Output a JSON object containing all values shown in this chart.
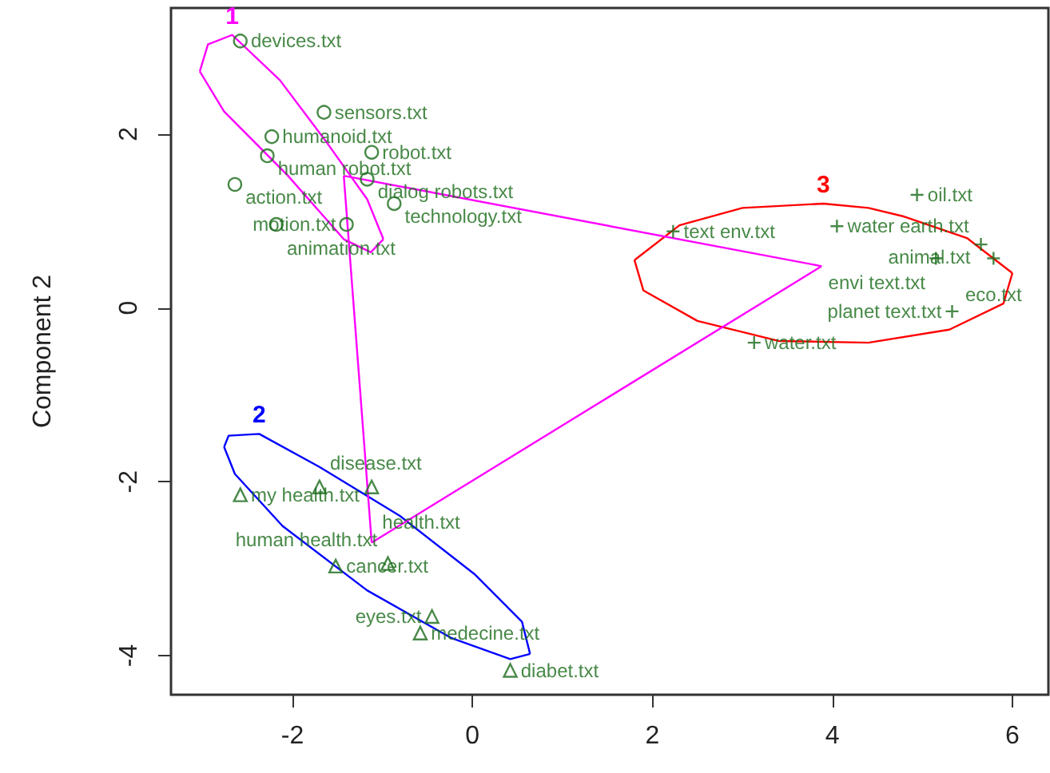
{
  "chart_data": {
    "type": "scatter",
    "ylabel": "Component 2",
    "xlim": [
      -3.35,
      6.4
    ],
    "ylim": [
      -4.45,
      3.45
    ],
    "xticks": [
      -2,
      0,
      2,
      4,
      6
    ],
    "yticks": [
      -4,
      -2,
      0,
      2
    ],
    "grid": false,
    "annotations": [
      "1",
      "2",
      "3"
    ],
    "series": [
      {
        "type": "line",
        "color": "#ff00ff",
        "x": [
          -3.03,
          -2.94,
          -2.67,
          -2.14,
          -1.61,
          -1.17,
          -0.99
        ],
        "values": [
          2.72,
          3.03,
          3.14,
          2.62,
          1.89,
          1.25,
          0.79
        ]
      },
      {
        "type": "line",
        "color": "#ff00ff",
        "x": [
          -3.03,
          -2.76,
          -2.05,
          -1.43,
          -1.13,
          -0.99
        ],
        "values": [
          2.72,
          2.26,
          1.52,
          0.79,
          0.64,
          0.79
        ]
      },
      {
        "type": "line",
        "color": "#0000ff",
        "x": [
          -2.76,
          -2.71,
          -2.37,
          -1.7,
          -0.81,
          0.02,
          0.55,
          0.64
        ],
        "values": [
          -1.6,
          -1.47,
          -1.45,
          -1.83,
          -2.39,
          -3.06,
          -3.61,
          -3.98
        ]
      },
      {
        "type": "line",
        "color": "#0000ff",
        "x": [
          -2.76,
          -2.64,
          -2.11,
          -1.17,
          -0.23,
          0.42,
          0.64
        ],
        "values": [
          -1.6,
          -1.91,
          -2.51,
          -3.25,
          -3.8,
          -4.04,
          -3.98
        ]
      },
      {
        "type": "line",
        "color": "#ff0000",
        "x": [
          1.8,
          2.3,
          3.0,
          3.9,
          4.4,
          4.8,
          5.5,
          6.0
        ],
        "values": [
          0.55,
          0.95,
          1.15,
          1.2,
          1.15,
          1.05,
          0.8,
          0.4
        ]
      },
      {
        "type": "line",
        "color": "#ff0000",
        "x": [
          1.8,
          1.9,
          2.5,
          3.4,
          4.4,
          5.3,
          5.9,
          6.0
        ],
        "values": [
          0.55,
          0.2,
          -0.15,
          -0.38,
          -0.4,
          -0.25,
          0.05,
          0.4
        ]
      },
      {
        "type": "line",
        "color": "#ff00ff",
        "x": [
          -1.43,
          3.88
        ],
        "values": [
          1.52,
          0.48
        ]
      },
      {
        "type": "line",
        "color": "#ff00ff",
        "x": [
          -1.43,
          -1.12
        ],
        "values": [
          1.52,
          -2.7
        ]
      },
      {
        "type": "line",
        "color": "#ff00ff",
        "x": [
          -1.12,
          3.88
        ],
        "values": [
          -2.7,
          0.48
        ]
      },
      {
        "type": "scatter",
        "marker": "circle",
        "color": "#1a6b1a",
        "x": [
          -2.58,
          -1.65,
          -2.23,
          -2.28,
          -1.12,
          -1.17,
          -2.64,
          -0.87,
          -2.18,
          -1.4
        ],
        "values": [
          3.07,
          2.25,
          1.97,
          1.75,
          1.79,
          1.48,
          1.42,
          1.2,
          0.96,
          0.96
        ],
        "value_labels": [
          "devices.txt",
          "sensors.txt",
          "humanoid.txt",
          "human robot.txt",
          "robot.txt",
          "dialog robots.txt",
          "action.txt",
          "technology.txt",
          "animation.txt",
          "motion.txt"
        ]
      },
      {
        "type": "scatter",
        "marker": "triangle",
        "color": "#1a6b1a",
        "x": [
          -2.58,
          -1.7,
          -1.12,
          -1.52,
          -0.94,
          -0.58,
          -0.45,
          0.42
        ],
        "values": [
          -2.15,
          -2.06,
          -2.06,
          -2.97,
          -2.94,
          -3.74,
          -3.55,
          -4.17
        ],
        "value_labels": [
          "my health.txt",
          "disease.txt",
          "health.txt",
          "cancer.txt",
          "human health.txt",
          "medecine.txt",
          "eyes.txt",
          "diabet.txt"
        ]
      },
      {
        "type": "scatter",
        "marker": "cross",
        "color": "#1a6b1a",
        "x": [
          2.23,
          4.05,
          4.94,
          5.65,
          5.15,
          5.79,
          5.33,
          3.13
        ],
        "values": [
          0.88,
          0.94,
          1.3,
          0.73,
          0.57,
          0.57,
          -0.04,
          -0.4
        ],
        "value_labels": [
          "text env.txt",
          "water earth.txt",
          "oil.txt",
          "animal.txt",
          "envi text.txt",
          "eco.txt",
          "planet text.txt",
          "water.txt"
        ]
      }
    ]
  }
}
